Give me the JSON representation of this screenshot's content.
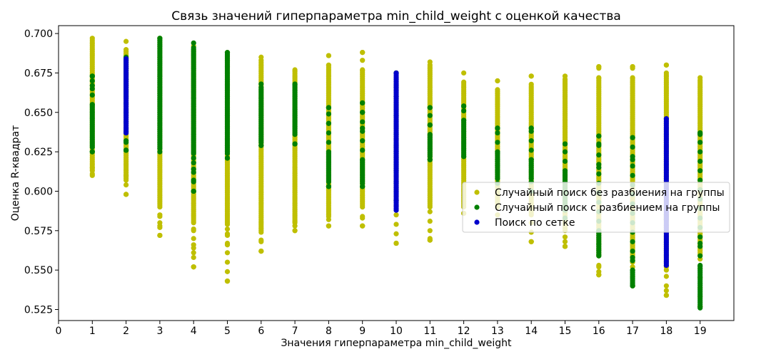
{
  "chart_data": {
    "type": "scatter",
    "title": "Связь значений гиперпараметра min_child_weight с оценкой качества",
    "xlabel": "Значения гиперпараметра min_child_weight",
    "ylabel": "Оценка R-квадрат",
    "xlim": [
      0,
      20
    ],
    "ylim": [
      0.518,
      0.705
    ],
    "xticks": [
      0,
      1,
      2,
      3,
      4,
      5,
      6,
      7,
      8,
      9,
      10,
      11,
      12,
      13,
      14,
      15,
      16,
      17,
      18,
      19
    ],
    "yticks": [
      "0.525",
      "0.550",
      "0.575",
      "0.600",
      "0.625",
      "0.650",
      "0.675",
      "0.700"
    ],
    "grid": false,
    "legend_position": "center-right",
    "series": [
      {
        "name": "Случайный поиск без разбиения на группы",
        "color": "#bfbf00",
        "points": [
          {
            "x": 1,
            "min": 0.61,
            "max": 0.697,
            "dense_min": 0.613,
            "dense_max": 0.696,
            "outliers": [
              0.611,
              0.615
            ]
          },
          {
            "x": 2,
            "min": 0.598,
            "max": 0.695,
            "dense_min": 0.607,
            "dense_max": 0.69,
            "outliers": [
              0.598,
              0.61
            ]
          },
          {
            "x": 3,
            "min": 0.572,
            "max": 0.697,
            "dense_min": 0.59,
            "dense_max": 0.696,
            "outliers": [
              0.572,
              0.577,
              0.58,
              0.585
            ]
          },
          {
            "x": 4,
            "min": 0.552,
            "max": 0.692,
            "dense_min": 0.58,
            "dense_max": 0.69,
            "outliers": [
              0.552,
              0.561,
              0.566,
              0.575
            ]
          },
          {
            "x": 5,
            "min": 0.543,
            "max": 0.688,
            "dense_min": 0.58,
            "dense_max": 0.686,
            "outliers": [
              0.543,
              0.566,
              0.572,
              0.576
            ]
          },
          {
            "x": 6,
            "min": 0.562,
            "max": 0.685,
            "dense_min": 0.575,
            "dense_max": 0.684,
            "outliers": [
              0.562,
              0.569
            ]
          },
          {
            "x": 7,
            "min": 0.575,
            "max": 0.677,
            "dense_min": 0.58,
            "dense_max": 0.676,
            "outliers": [
              0.575,
              0.578,
              0.581
            ]
          },
          {
            "x": 8,
            "min": 0.578,
            "max": 0.686,
            "dense_min": 0.585,
            "dense_max": 0.68,
            "outliers": [
              0.578,
              0.582,
              0.686
            ]
          },
          {
            "x": 9,
            "min": 0.578,
            "max": 0.688,
            "dense_min": 0.59,
            "dense_max": 0.677,
            "outliers": [
              0.578,
              0.583,
              0.688
            ]
          },
          {
            "x": 10,
            "min": 0.567,
            "max": 0.675,
            "dense_min": 0.6,
            "dense_max": 0.67,
            "outliers": [
              0.567
            ]
          },
          {
            "x": 11,
            "min": 0.569,
            "max": 0.682,
            "dense_min": 0.59,
            "dense_max": 0.68,
            "outliers": [
              0.569,
              0.57
            ]
          },
          {
            "x": 12,
            "min": 0.586,
            "max": 0.675,
            "dense_min": 0.59,
            "dense_max": 0.67,
            "outliers": [
              0.586
            ]
          },
          {
            "x": 13,
            "min": 0.585,
            "max": 0.67,
            "dense_min": 0.59,
            "dense_max": 0.665,
            "outliers": [
              0.67
            ]
          },
          {
            "x": 14,
            "min": 0.568,
            "max": 0.673,
            "dense_min": 0.585,
            "dense_max": 0.668,
            "outliers": [
              0.568,
              0.673
            ]
          },
          {
            "x": 15,
            "min": 0.565,
            "max": 0.673,
            "dense_min": 0.575,
            "dense_max": 0.672,
            "outliers": [
              0.565,
              0.568
            ]
          },
          {
            "x": 16,
            "min": 0.547,
            "max": 0.679,
            "dense_min": 0.56,
            "dense_max": 0.672,
            "outliers": [
              0.547,
              0.549,
              0.552,
              0.679
            ]
          },
          {
            "x": 17,
            "min": 0.54,
            "max": 0.679,
            "dense_min": 0.555,
            "dense_max": 0.672,
            "outliers": [
              0.679
            ]
          },
          {
            "x": 18,
            "min": 0.534,
            "max": 0.68,
            "dense_min": 0.555,
            "dense_max": 0.676,
            "outliers": [
              0.534,
              0.537,
              0.55,
              0.68
            ]
          },
          {
            "x": 19,
            "min": 0.527,
            "max": 0.672,
            "dense_min": 0.56,
            "dense_max": 0.671,
            "outliers": [
              0.527
            ]
          }
        ]
      },
      {
        "name": "Случайный поиск с разбиением на группы",
        "color": "#008000",
        "points": [
          {
            "x": 1,
            "min": 0.625,
            "max": 0.673,
            "dense_min": 0.628,
            "dense_max": 0.655,
            "outliers": [
              0.625,
              0.665,
              0.67,
              0.673
            ]
          },
          {
            "x": 2,
            "min": 0.626,
            "max": 0.685,
            "dense_min": 0.66,
            "dense_max": 0.684,
            "outliers": [
              0.626,
              0.631
            ]
          },
          {
            "x": 3,
            "min": 0.625,
            "max": 0.697,
            "dense_min": 0.627,
            "dense_max": 0.697,
            "outliers": []
          },
          {
            "x": 4,
            "min": 0.6,
            "max": 0.694,
            "dense_min": 0.625,
            "dense_max": 0.692,
            "outliers": [
              0.6,
              0.607,
              0.614,
              0.621
            ]
          },
          {
            "x": 5,
            "min": 0.621,
            "max": 0.688,
            "dense_min": 0.624,
            "dense_max": 0.688,
            "outliers": [
              0.621
            ]
          },
          {
            "x": 6,
            "min": 0.629,
            "max": 0.668,
            "dense_min": 0.631,
            "dense_max": 0.666,
            "outliers": [
              0.629
            ]
          },
          {
            "x": 7,
            "min": 0.63,
            "max": 0.668,
            "dense_min": 0.636,
            "dense_max": 0.668,
            "outliers": [
              0.63
            ]
          },
          {
            "x": 8,
            "min": 0.603,
            "max": 0.653,
            "dense_min": 0.606,
            "dense_max": 0.625,
            "outliers": [
              0.603,
              0.643,
              0.653
            ]
          },
          {
            "x": 9,
            "min": 0.603,
            "max": 0.656,
            "dense_min": 0.605,
            "dense_max": 0.62,
            "outliers": [
              0.603,
              0.64,
              0.65,
              0.656
            ]
          },
          {
            "x": 10,
            "min": 0.594,
            "max": 0.675,
            "dense_min": 0.613,
            "dense_max": 0.63,
            "outliers": [
              0.594,
              0.605,
              0.675
            ]
          },
          {
            "x": 11,
            "min": 0.62,
            "max": 0.653,
            "dense_min": 0.622,
            "dense_max": 0.636,
            "outliers": [
              0.62,
              0.642,
              0.653
            ]
          },
          {
            "x": 12,
            "min": 0.622,
            "max": 0.654,
            "dense_min": 0.622,
            "dense_max": 0.645,
            "outliers": [
              0.654
            ]
          },
          {
            "x": 13,
            "min": 0.605,
            "max": 0.64,
            "dense_min": 0.608,
            "dense_max": 0.625,
            "outliers": [
              0.64
            ]
          },
          {
            "x": 14,
            "min": 0.6,
            "max": 0.64,
            "dense_min": 0.608,
            "dense_max": 0.62,
            "outliers": [
              0.64
            ]
          },
          {
            "x": 15,
            "min": 0.583,
            "max": 0.63,
            "dense_min": 0.588,
            "dense_max": 0.613,
            "outliers": [
              0.63
            ]
          },
          {
            "x": 16,
            "min": 0.559,
            "max": 0.635,
            "dense_min": 0.56,
            "dense_max": 0.575,
            "outliers": [
              0.615,
              0.63,
              0.635
            ]
          },
          {
            "x": 17,
            "min": 0.54,
            "max": 0.634,
            "dense_min": 0.54,
            "dense_max": 0.55,
            "outliers": [
              0.556,
              0.558,
              0.62,
              0.634
            ]
          },
          {
            "x": 18,
            "min": 0.582,
            "max": 0.585,
            "dense_min": 0.582,
            "dense_max": 0.585,
            "outliers": []
          },
          {
            "x": 19,
            "min": 0.526,
            "max": 0.637,
            "dense_min": 0.527,
            "dense_max": 0.553,
            "outliers": [
              0.567,
              0.636,
              0.637
            ]
          }
        ]
      },
      {
        "name": "Поиск по сетке",
        "color": "#0000cc",
        "points": [
          {
            "x": 2,
            "min": 0.637,
            "max": 0.684,
            "dense_min": 0.637,
            "dense_max": 0.684,
            "outliers": []
          },
          {
            "x": 10,
            "min": 0.588,
            "max": 0.675,
            "dense_min": 0.588,
            "dense_max": 0.675,
            "outliers": []
          },
          {
            "x": 18,
            "min": 0.553,
            "max": 0.646,
            "dense_min": 0.553,
            "dense_max": 0.646,
            "outliers": []
          }
        ]
      }
    ]
  }
}
